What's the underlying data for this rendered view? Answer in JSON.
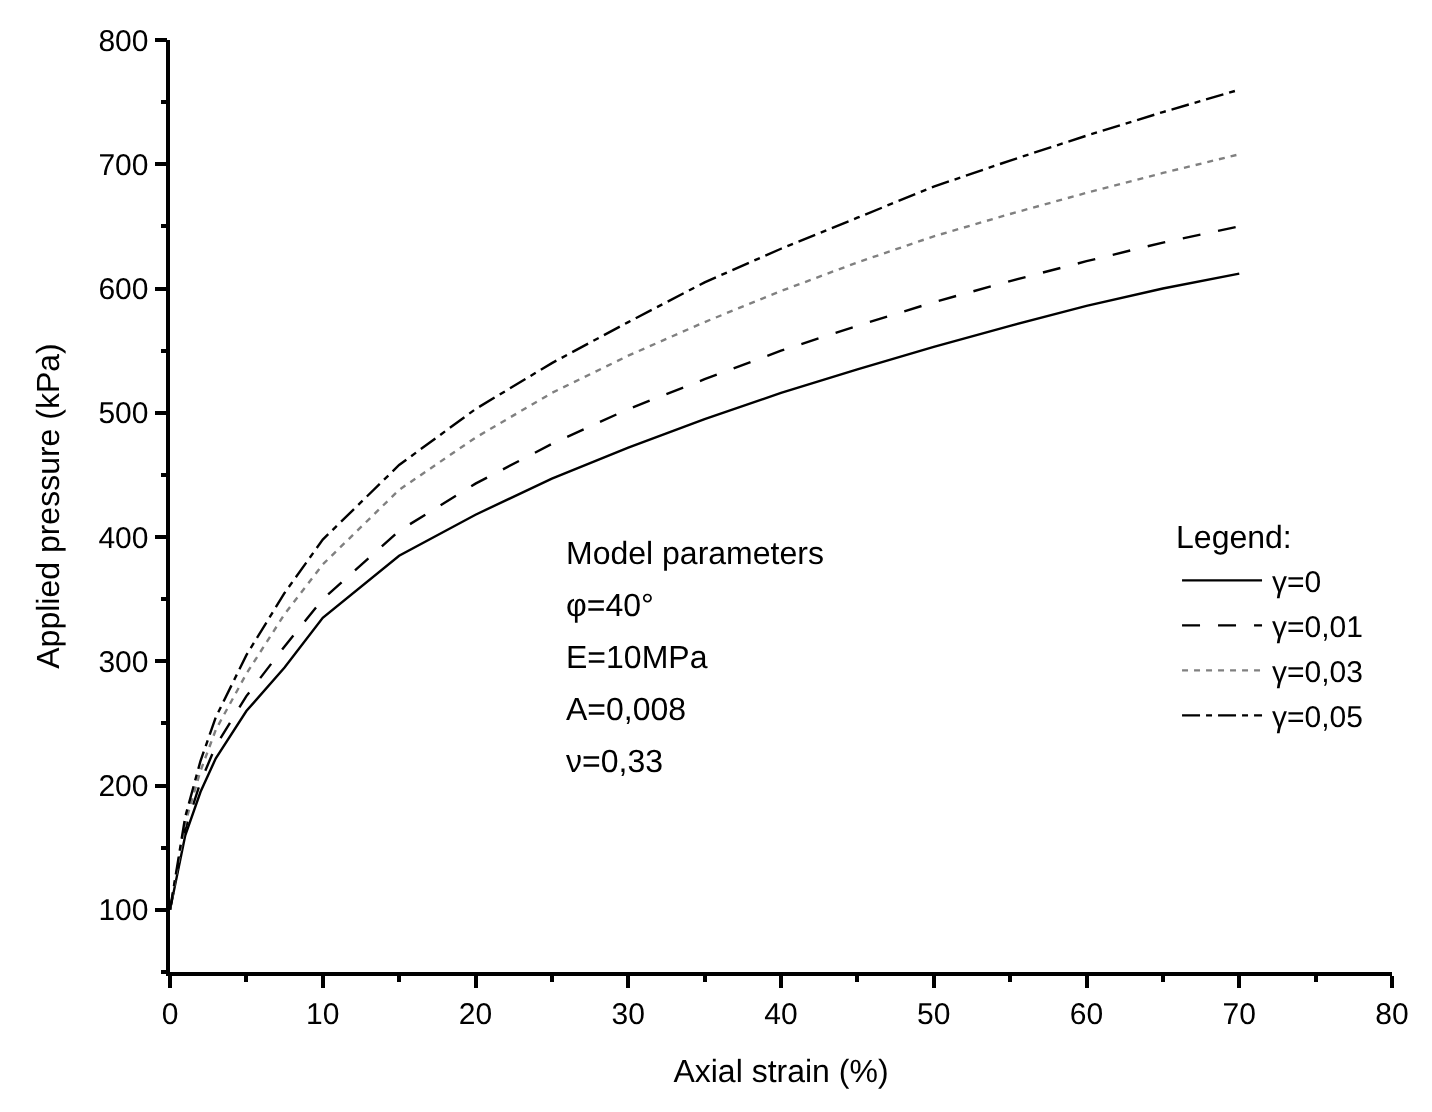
{
  "chart_data": {
    "type": "line",
    "xlabel": "Axial strain (%)",
    "ylabel": "Applied pressure (kPa)",
    "legend_title": "Legend:",
    "legend": "bottom right",
    "x": [
      0,
      1,
      2,
      3,
      5,
      7.5,
      10,
      15,
      20,
      25,
      30,
      35,
      40,
      45,
      50,
      55,
      60,
      65,
      70
    ],
    "series": [
      {
        "name": "γ=0",
        "color": "#000000",
        "line_style": "solid",
        "values": [
          100,
          160,
          195,
          222,
          260,
          295,
          335,
          385,
          418,
          447,
          472,
          495,
          516,
          535,
          553,
          570,
          586,
          600,
          612
        ]
      },
      {
        "name": "γ=0,01",
        "color": "#000000",
        "line_style": "dashed",
        "values": [
          100,
          165,
          203,
          232,
          272,
          312,
          350,
          405,
          443,
          475,
          503,
          527,
          550,
          570,
          589,
          606,
          622,
          637,
          650
        ]
      },
      {
        "name": "γ=0,03",
        "color": "#808080",
        "line_style": "dotted",
        "values": [
          100,
          170,
          212,
          245,
          290,
          338,
          378,
          438,
          480,
          516,
          546,
          573,
          598,
          621,
          642,
          660,
          677,
          693,
          708
        ]
      },
      {
        "name": "γ=0,05",
        "color": "#000000",
        "line_style": "dashdot",
        "values": [
          100,
          175,
          220,
          255,
          305,
          355,
          398,
          458,
          503,
          540,
          573,
          605,
          632,
          657,
          682,
          703,
          723,
          742,
          760
        ]
      }
    ],
    "xlim": [
      0,
      80
    ],
    "ylim": [
      50,
      800
    ],
    "xticks": [
      0,
      {
        "value": 5,
        "label": null
      },
      10,
      {
        "value": 15,
        "label": null
      },
      20,
      {
        "value": 25,
        "label": null
      },
      30,
      {
        "value": 35,
        "label": null
      },
      40,
      {
        "value": 45,
        "label": null
      },
      50,
      {
        "value": 55,
        "label": null
      },
      60,
      {
        "value": 65,
        "label": null
      },
      70,
      {
        "value": 75,
        "label": null
      },
      80
    ],
    "yticks": [
      {
        "value": 50,
        "label": null
      },
      100,
      {
        "value": 150,
        "label": null
      },
      200,
      {
        "value": 250,
        "label": null
      },
      300,
      {
        "value": 350,
        "label": null
      },
      400,
      {
        "value": 450,
        "label": null
      },
      500,
      {
        "value": 550,
        "label": null
      },
      600,
      {
        "value": 650,
        "label": null
      },
      700,
      {
        "value": 750,
        "label": null
      },
      800
    ],
    "annotations": [
      "Model parameters",
      "φ=40°",
      "E=10MPa",
      "A=0,008",
      "ν=0,33"
    ]
  }
}
